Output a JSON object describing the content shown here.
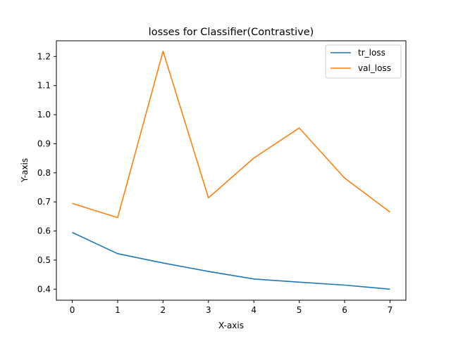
{
  "chart_data": {
    "type": "line",
    "title": "losses for Classifier(Contrastive)",
    "xlabel": "X-axis",
    "ylabel": "Y-axis",
    "xlim": [
      -0.35,
      7.35
    ],
    "ylim": [
      0.362,
      1.254
    ],
    "x": [
      0,
      1,
      2,
      3,
      4,
      5,
      6,
      7
    ],
    "xticks": [
      "0",
      "1",
      "2",
      "3",
      "4",
      "5",
      "6",
      "7"
    ],
    "yticks": [
      "0.4",
      "0.5",
      "0.6",
      "0.7",
      "0.8",
      "0.9",
      "1.0",
      "1.1",
      "1.2"
    ],
    "grid": false,
    "legend_position": "top-right",
    "series": [
      {
        "name": "tr_loss",
        "color": "#1f77b4",
        "values": [
          0.595,
          0.522,
          0.49,
          0.461,
          0.435,
          0.424,
          0.414,
          0.4
        ]
      },
      {
        "name": "val_loss",
        "color": "#ff7f0e",
        "values": [
          0.695,
          0.646,
          1.218,
          0.714,
          0.851,
          0.954,
          0.782,
          0.665
        ]
      }
    ]
  }
}
